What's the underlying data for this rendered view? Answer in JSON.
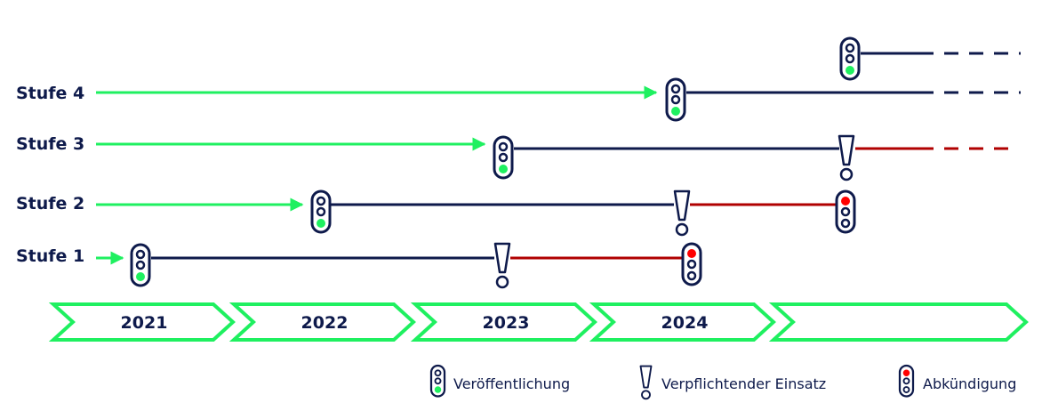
{
  "colors": {
    "navy": "#0e1a4b",
    "green": "#1ff060",
    "red": "#b00000",
    "lamp_red": "#ff0000",
    "lamp_green": "#1ff060"
  },
  "years": [
    "2021",
    "2022",
    "2023",
    "2024",
    ""
  ],
  "stages": [
    {
      "label": "Stufe 4"
    },
    {
      "label": "Stufe 3"
    },
    {
      "label": "Stufe 2"
    },
    {
      "label": "Stufe 1"
    }
  ],
  "legend": {
    "publication": "Veröffentlichung",
    "mandatory": "Verpflichtender Einsatz",
    "discontinuation": "Abkündigung"
  }
}
